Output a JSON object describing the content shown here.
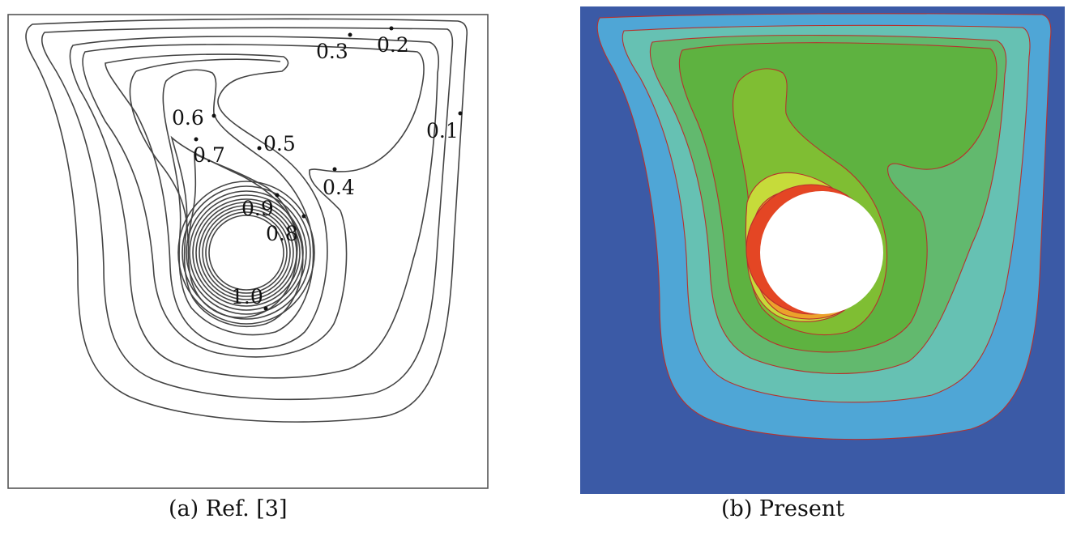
{
  "panel_a": {
    "caption": "(a) Ref. [3]",
    "contour_labels": [
      "0.1",
      "0.2",
      "0.3",
      "0.4",
      "0.5",
      "0.6",
      "0.7",
      "0.8",
      "0.9",
      "1.0"
    ]
  },
  "panel_b": {
    "caption": "(b) Present",
    "colors": {
      "background": "#3b5aa6",
      "level_1": "#4fa6d6",
      "level_2": "#66c1b3",
      "level_3": "#62b96e",
      "level_4": "#5eb240",
      "level_5": "#7fbe33",
      "level_6": "#c6db3a",
      "level_7": "#eca22b",
      "level_8": "#e44624",
      "contour_line": "#b7312d",
      "obstacle": "#ffffff"
    }
  }
}
